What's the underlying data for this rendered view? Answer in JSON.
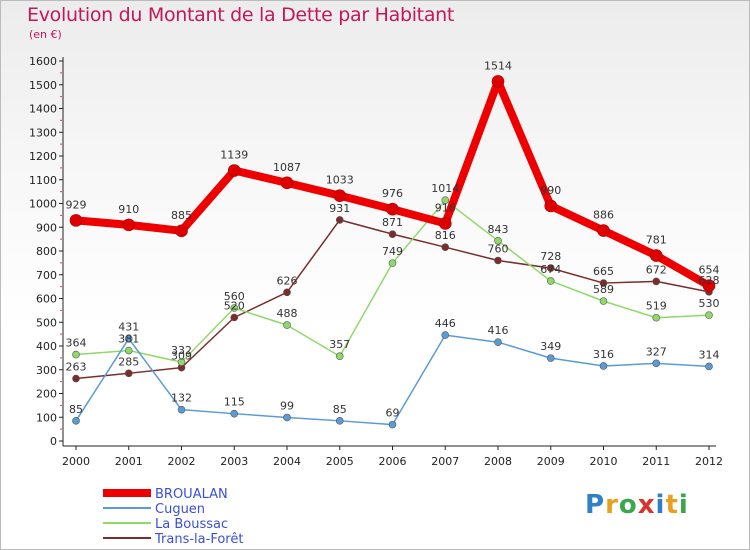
{
  "title": "Evolution du Montant de la Dette par Habitant",
  "unit_label": "(en €)",
  "logo_text": "Proxiti",
  "chart_data": {
    "type": "line",
    "title": "Evolution du Montant de la Dette par Habitant",
    "subtitle": "(en €)",
    "xlabel": "",
    "ylabel": "",
    "x": [
      "2000",
      "2001",
      "2002",
      "2003",
      "2004",
      "2005",
      "2006",
      "2007",
      "2008",
      "2009",
      "2010",
      "2011",
      "2012"
    ],
    "ylim": [
      0,
      1600
    ],
    "yticks": [
      0,
      100,
      200,
      300,
      400,
      500,
      600,
      700,
      800,
      900,
      1000,
      1100,
      1200,
      1300,
      1400,
      1500,
      1600
    ],
    "grid": false,
    "legend_position": "bottom-left",
    "series": [
      {
        "name": "BROUALAN",
        "color": "#ee0000",
        "width": 8,
        "values": [
          929,
          910,
          885,
          1139,
          1087,
          1033,
          976,
          916,
          1514,
          990,
          886,
          781,
          654
        ]
      },
      {
        "name": "Cuguen",
        "color": "#5b9bd5",
        "width": 1.5,
        "values": [
          85,
          431,
          132,
          115,
          99,
          85,
          69,
          446,
          416,
          349,
          316,
          327,
          314
        ]
      },
      {
        "name": "La Boussac",
        "color": "#8fd86a",
        "width": 1.5,
        "values": [
          364,
          381,
          332,
          560,
          488,
          357,
          749,
          1014,
          843,
          674,
          589,
          519,
          530
        ]
      },
      {
        "name": "Trans-la-Forêt",
        "color": "#7b2c2c",
        "width": 1.5,
        "values": [
          263,
          285,
          309,
          520,
          626,
          931,
          871,
          816,
          760,
          728,
          665,
          672,
          628
        ]
      }
    ]
  }
}
